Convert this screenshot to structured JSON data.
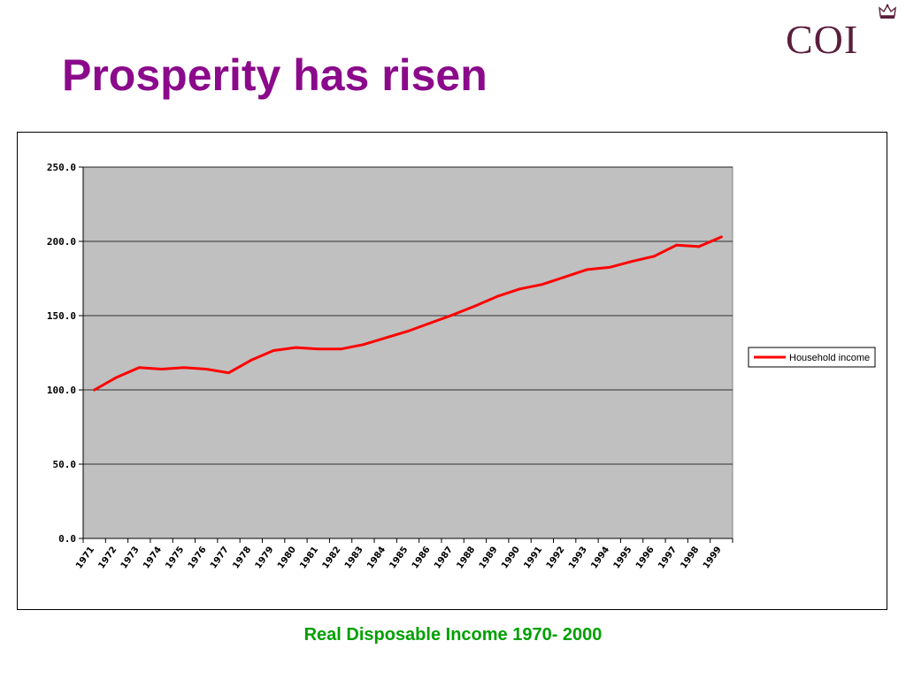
{
  "slide": {
    "title": "Prosperity has risen",
    "logo_text": "COI",
    "caption": "Real Disposable Income 1970- 2000"
  },
  "colors": {
    "title": "#8b0a8b",
    "logo": "#5a1e3c",
    "caption": "#00a000",
    "series": "#ff0000",
    "plot_bg": "#c0c0c0"
  },
  "icons": {
    "crown": "crown-icon"
  },
  "chart_data": {
    "type": "line",
    "x": [
      "1971",
      "1972",
      "1973",
      "1974",
      "1975",
      "1976",
      "1977",
      "1978",
      "1979",
      "1980",
      "1981",
      "1982",
      "1983",
      "1984",
      "1985",
      "1986",
      "1987",
      "1988",
      "1989",
      "1990",
      "1991",
      "1992",
      "1993",
      "1994",
      "1995",
      "1996",
      "1997",
      "1998",
      "1999"
    ],
    "series": [
      {
        "name": "Household income",
        "values": [
          100.0,
          108.5,
          115.0,
          114.0,
          115.0,
          114.0,
          111.5,
          120.0,
          126.5,
          128.5,
          127.5,
          127.5,
          130.5,
          135.0,
          139.5,
          145.0,
          150.5,
          156.5,
          163.0,
          168.0,
          171.0,
          176.0,
          181.0,
          182.5,
          186.5,
          190.0,
          197.5,
          196.5,
          203.0
        ]
      }
    ],
    "y_ticks": [
      "0.0",
      "50.0",
      "100.0",
      "150.0",
      "200.0",
      "250.0"
    ],
    "ylim": [
      0,
      250
    ],
    "title": "",
    "xlabel": "",
    "ylabel": "",
    "grid": "horizontal",
    "legend_position": "right"
  }
}
